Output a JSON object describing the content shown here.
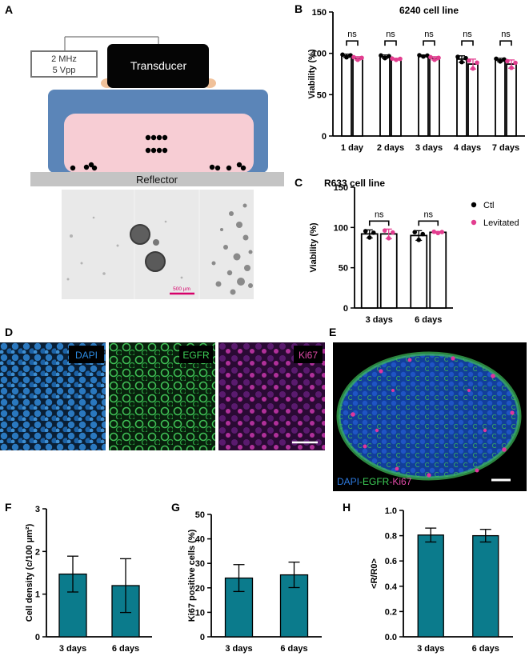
{
  "panels": {
    "A": "A",
    "B": "B",
    "C": "C",
    "D": "D",
    "E": "E",
    "F": "F",
    "G": "G",
    "H": "H"
  },
  "schematic": {
    "generator": [
      "2 MHz",
      "5 Vpp"
    ],
    "transducer": "Transducer",
    "reflector": "Reflector",
    "scale_bar": "500 µm"
  },
  "micrographs": {
    "dapi": "DAPI",
    "egfr": "EGFR",
    "ki67": "Ki67",
    "merge": [
      "DAPI",
      "-EGFR",
      "-Ki67"
    ]
  },
  "colors": {
    "dapi": "#1e74c6",
    "egfr": "#2fb24a",
    "ki67": "#e0359e",
    "bar": "#0b7b8c",
    "ctl": "#000000",
    "lev": "#e23d8f"
  },
  "chart_data": [
    {
      "id": "B",
      "type": "bar",
      "title": "6240 cell line",
      "ylabel": "Viability (%)",
      "xlabel": "",
      "categories": [
        "1 day",
        "2 days",
        "3 days",
        "4 days",
        "7 days"
      ],
      "ylim": [
        0,
        150
      ],
      "yticks": [
        0,
        50,
        100,
        150
      ],
      "series": [
        {
          "name": "Ctl",
          "values": [
            97,
            96,
            97,
            93,
            92
          ],
          "err": [
            2,
            2,
            1,
            4,
            2
          ]
        },
        {
          "name": "Levitated",
          "values": [
            94,
            93,
            94,
            87,
            87
          ],
          "err": [
            2,
            1,
            2,
            6,
            5
          ]
        }
      ],
      "annotations": [
        "ns",
        "ns",
        "ns",
        "ns",
        "ns"
      ]
    },
    {
      "id": "C",
      "type": "bar",
      "title": "R633 cell line",
      "ylabel": "Viability (%)",
      "xlabel": "",
      "categories": [
        "3 days",
        "6 days"
      ],
      "ylim": [
        0,
        150
      ],
      "yticks": [
        0,
        50,
        100,
        150
      ],
      "series": [
        {
          "name": "Ctl",
          "values": [
            92,
            90
          ],
          "err": [
            5,
            6
          ]
        },
        {
          "name": "Levitated",
          "values": [
            92,
            94
          ],
          "err": [
            6,
            1
          ]
        }
      ],
      "annotations": [
        "ns",
        "ns"
      ],
      "legend": {
        "position": "right",
        "entries": [
          "Ctl",
          "Levitated"
        ]
      }
    },
    {
      "id": "F",
      "type": "bar",
      "title": "",
      "ylabel": "Cell density (c/100 µm²)",
      "xlabel": "",
      "categories": [
        "3 days",
        "6 days"
      ],
      "ylim": [
        0,
        3
      ],
      "yticks": [
        0,
        1,
        2,
        3
      ],
      "values": [
        1.47,
        1.2
      ],
      "err": [
        0.42,
        0.63
      ]
    },
    {
      "id": "G",
      "type": "bar",
      "title": "",
      "ylabel": "Ki67 positive cells (%)",
      "xlabel": "",
      "categories": [
        "3 days",
        "6 days"
      ],
      "ylim": [
        0,
        50
      ],
      "yticks": [
        0,
        10,
        20,
        30,
        40,
        50
      ],
      "values": [
        24,
        25.3
      ],
      "err": [
        5.5,
        5.2
      ]
    },
    {
      "id": "H",
      "type": "bar",
      "title": "",
      "ylabel": "<R/R0>",
      "xlabel": "",
      "categories": [
        "3 days",
        "6 days"
      ],
      "ylim": [
        0,
        1.0
      ],
      "yticks": [
        "0.0",
        "0.2",
        "0.4",
        "0.6",
        "0.8",
        "1.0"
      ],
      "values": [
        0.805,
        0.8
      ],
      "err": [
        0.055,
        0.05
      ]
    }
  ]
}
